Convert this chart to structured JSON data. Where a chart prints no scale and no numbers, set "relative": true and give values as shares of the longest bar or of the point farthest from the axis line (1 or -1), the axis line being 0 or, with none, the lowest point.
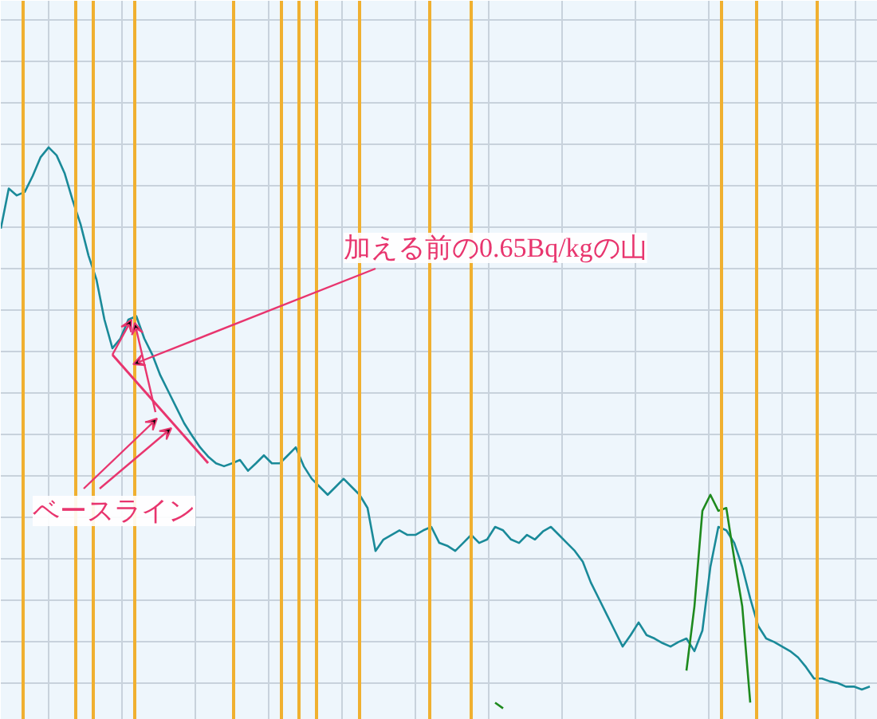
{
  "chart_data": {
    "type": "line",
    "relative": true,
    "grid": true,
    "marker": "none",
    "line_style": "solid",
    "categories": [
      null,
      null,
      null,
      null,
      null,
      null,
      null,
      null,
      null,
      null,
      null,
      null,
      null,
      null,
      null,
      null,
      null,
      null,
      null,
      null,
      null,
      null,
      null,
      null,
      null,
      null,
      null,
      null,
      null,
      null,
      null,
      null,
      null,
      null,
      null,
      null,
      null,
      null,
      null,
      null,
      null,
      null,
      null,
      null,
      null,
      null,
      null,
      null,
      null,
      null,
      null,
      null,
      null,
      null,
      null,
      null,
      null,
      null,
      null,
      null,
      null,
      null,
      null,
      null,
      null,
      null,
      null,
      null,
      null,
      null,
      null,
      null,
      null,
      null,
      null,
      null,
      null,
      null,
      null,
      null,
      null,
      null,
      null,
      null,
      null,
      null,
      null,
      null,
      null,
      null,
      null,
      null,
      null,
      null,
      null,
      null,
      null,
      null,
      null,
      null,
      null,
      null,
      null,
      null,
      null,
      null,
      null,
      null,
      null,
      null
    ],
    "series": [
      {
        "color": "#1a8a99",
        "values": [
          0.858,
          0.928,
          0.916,
          0.922,
          0.95,
          0.983,
          1.0,
          0.986,
          0.955,
          0.908,
          0.866,
          0.811,
          0.769,
          0.699,
          0.649,
          0.666,
          0.699,
          0.705,
          0.666,
          0.638,
          0.602,
          0.574,
          0.546,
          0.518,
          0.496,
          0.476,
          0.46,
          0.448,
          0.443,
          0.448,
          0.454,
          0.435,
          0.448,
          0.462,
          0.448,
          0.448,
          0.462,
          0.476,
          0.443,
          0.421,
          0.407,
          0.393,
          0.407,
          0.421,
          0.407,
          0.393,
          0.37,
          0.295,
          0.315,
          0.323,
          0.331,
          0.323,
          0.323,
          0.331,
          0.337,
          0.309,
          0.304,
          0.295,
          0.309,
          0.323,
          0.309,
          0.315,
          0.337,
          0.331,
          0.315,
          0.309,
          0.323,
          0.315,
          0.329,
          0.337,
          0.323,
          0.309,
          0.295,
          0.276,
          0.24,
          0.212,
          0.184,
          0.156,
          0.128,
          0.148,
          0.17,
          0.148,
          0.142,
          0.134,
          0.128,
          0.136,
          0.142,
          0.12,
          0.156,
          0.267,
          0.337,
          0.331,
          0.309,
          0.267,
          0.212,
          0.164,
          0.142,
          0.136,
          0.128,
          0.12,
          0.109,
          0.092,
          0.072,
          0.072,
          0.067,
          0.064,
          0.058,
          0.058,
          0.053,
          0.058
        ]
      },
      {
        "color": "#1e8a1e",
        "values": [
          null,
          null,
          null,
          null,
          null,
          null,
          null,
          null,
          null,
          null,
          null,
          null,
          null,
          null,
          null,
          null,
          null,
          null,
          null,
          null,
          null,
          null,
          null,
          null,
          null,
          null,
          null,
          null,
          null,
          null,
          null,
          null,
          null,
          null,
          null,
          null,
          null,
          null,
          null,
          null,
          null,
          null,
          null,
          null,
          null,
          null,
          null,
          null,
          null,
          null,
          null,
          null,
          null,
          null,
          null,
          null,
          null,
          null,
          null,
          null,
          null,
          null,
          0.03,
          0.02,
          null,
          null,
          null,
          null,
          null,
          null,
          null,
          null,
          null,
          null,
          null,
          null,
          null,
          null,
          null,
          null,
          null,
          null,
          null,
          null,
          null,
          null,
          0.086,
          0.198,
          0.365,
          0.393,
          0.365,
          0.37,
          0.281,
          0.198,
          0.03,
          null,
          null,
          null,
          null,
          null,
          null,
          null,
          null,
          null,
          null,
          null,
          null,
          null,
          null,
          null
        ]
      }
    ],
    "annotations": [
      "加える前の0.65Bq/kgの山",
      "ベースライン"
    ]
  }
}
